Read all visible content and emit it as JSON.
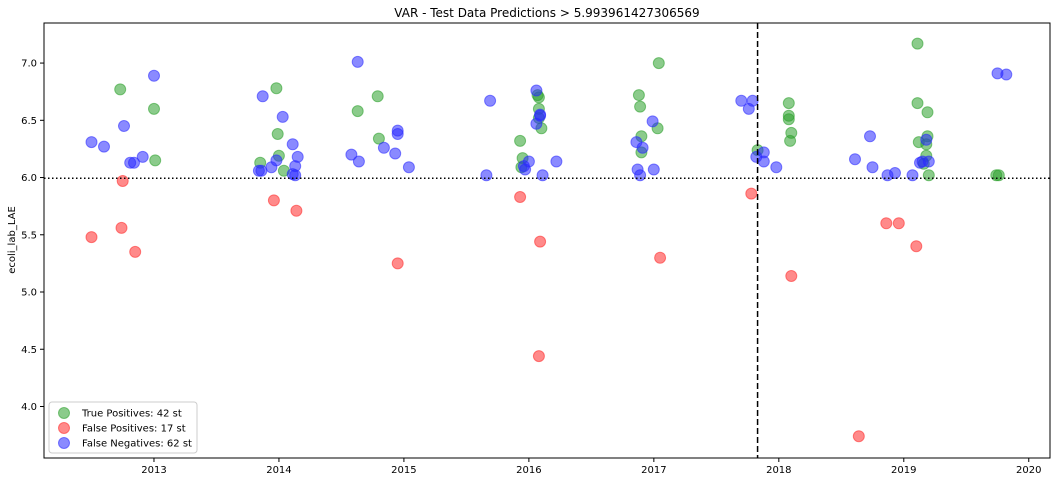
{
  "chart_data": {
    "type": "scatter",
    "title": "VAR - Test Data Predictions > 5.993961427306569",
    "xlabel": "",
    "ylabel": "ecoli_lab_LAE",
    "xlim": [
      2012.12,
      2020.17
    ],
    "ylim": [
      3.55,
      7.35
    ],
    "x_tick_labels": [
      "2013",
      "2014",
      "2015",
      "2016",
      "2017",
      "2018",
      "2019",
      "2020"
    ],
    "y_tick_labels": [
      "4.0",
      "4.5",
      "5.0",
      "5.5",
      "6.0",
      "6.5",
      "7.0"
    ],
    "threshold": 5.993961427306569,
    "vertical_line_x": 2017.83,
    "grid": false,
    "legend_position": "lower-left",
    "series": [
      {
        "name": "True Positives: 42 st",
        "color": "#2ca02c",
        "points": [
          [
            2012.73,
            6.77
          ],
          [
            2013.0,
            6.6
          ],
          [
            2013.01,
            6.15
          ],
          [
            2013.85,
            6.13
          ],
          [
            2013.98,
            6.78
          ],
          [
            2013.99,
            6.38
          ],
          [
            2014.0,
            6.19
          ],
          [
            2014.04,
            6.06
          ],
          [
            2014.63,
            6.58
          ],
          [
            2014.79,
            6.71
          ],
          [
            2014.8,
            6.34
          ],
          [
            2015.93,
            6.32
          ],
          [
            2015.95,
            6.17
          ],
          [
            2015.94,
            6.09
          ],
          [
            2016.07,
            6.72
          ],
          [
            2016.08,
            6.7
          ],
          [
            2016.08,
            6.6
          ],
          [
            2016.1,
            6.43
          ],
          [
            2016.08,
            6.52
          ],
          [
            2016.88,
            6.72
          ],
          [
            2016.89,
            6.62
          ],
          [
            2016.9,
            6.36
          ],
          [
            2016.9,
            6.22
          ],
          [
            2017.04,
            7.0
          ],
          [
            2017.03,
            6.43
          ],
          [
            2017.83,
            6.24
          ],
          [
            2018.08,
            6.65
          ],
          [
            2018.08,
            6.54
          ],
          [
            2018.08,
            6.51
          ],
          [
            2018.1,
            6.39
          ],
          [
            2018.09,
            6.32
          ],
          [
            2019.11,
            7.17
          ],
          [
            2019.11,
            6.65
          ],
          [
            2019.12,
            6.31
          ],
          [
            2019.19,
            6.57
          ],
          [
            2019.19,
            6.36
          ],
          [
            2019.18,
            6.29
          ],
          [
            2019.18,
            6.19
          ],
          [
            2019.16,
            6.12
          ],
          [
            2019.2,
            6.02
          ],
          [
            2019.74,
            6.02
          ],
          [
            2019.76,
            6.02
          ]
        ]
      },
      {
        "name": "False Positives: 17 st",
        "color": "#ff2a2a",
        "points": [
          [
            2012.5,
            5.48
          ],
          [
            2012.75,
            5.97
          ],
          [
            2012.74,
            5.56
          ],
          [
            2012.85,
            5.35
          ],
          [
            2013.96,
            5.8
          ],
          [
            2014.14,
            5.71
          ],
          [
            2014.95,
            5.25
          ],
          [
            2015.93,
            5.83
          ],
          [
            2016.09,
            5.44
          ],
          [
            2016.08,
            4.44
          ],
          [
            2017.05,
            5.3
          ],
          [
            2017.78,
            5.86
          ],
          [
            2018.1,
            5.14
          ],
          [
            2018.64,
            3.74
          ],
          [
            2018.86,
            5.6
          ],
          [
            2018.96,
            5.6
          ],
          [
            2019.1,
            5.4
          ]
        ]
      },
      {
        "name": "False Negatives: 62 st",
        "color": "#2a2aff",
        "points": [
          [
            2012.5,
            6.31
          ],
          [
            2012.6,
            6.27
          ],
          [
            2012.76,
            6.45
          ],
          [
            2012.81,
            6.13
          ],
          [
            2012.84,
            6.13
          ],
          [
            2012.91,
            6.18
          ],
          [
            2013.0,
            6.89
          ],
          [
            2013.84,
            6.06
          ],
          [
            2013.86,
            6.06
          ],
          [
            2013.87,
            6.71
          ],
          [
            2013.94,
            6.09
          ],
          [
            2013.98,
            6.15
          ],
          [
            2014.03,
            6.53
          ],
          [
            2014.11,
            6.29
          ],
          [
            2014.13,
            6.1
          ],
          [
            2014.11,
            6.03
          ],
          [
            2014.13,
            6.02
          ],
          [
            2014.15,
            6.18
          ],
          [
            2014.58,
            6.2
          ],
          [
            2014.63,
            7.01
          ],
          [
            2014.64,
            6.14
          ],
          [
            2014.84,
            6.26
          ],
          [
            2014.93,
            6.21
          ],
          [
            2014.95,
            6.38
          ],
          [
            2014.95,
            6.41
          ],
          [
            2015.04,
            6.09
          ],
          [
            2015.66,
            6.02
          ],
          [
            2015.69,
            6.67
          ],
          [
            2015.96,
            6.1
          ],
          [
            2015.97,
            6.07
          ],
          [
            2016.0,
            6.14
          ],
          [
            2016.06,
            6.76
          ],
          [
            2016.06,
            6.47
          ],
          [
            2016.09,
            6.54
          ],
          [
            2016.09,
            6.55
          ],
          [
            2016.11,
            6.02
          ],
          [
            2016.22,
            6.14
          ],
          [
            2016.86,
            6.31
          ],
          [
            2016.87,
            6.07
          ],
          [
            2016.89,
            6.02
          ],
          [
            2016.91,
            6.26
          ],
          [
            2016.99,
            6.49
          ],
          [
            2017.0,
            6.07
          ],
          [
            2017.7,
            6.67
          ],
          [
            2017.76,
            6.6
          ],
          [
            2017.79,
            6.67
          ],
          [
            2017.82,
            6.18
          ],
          [
            2017.88,
            6.22
          ],
          [
            2017.88,
            6.14
          ],
          [
            2017.98,
            6.09
          ],
          [
            2018.61,
            6.16
          ],
          [
            2018.73,
            6.36
          ],
          [
            2018.75,
            6.09
          ],
          [
            2018.87,
            6.02
          ],
          [
            2018.93,
            6.04
          ],
          [
            2019.07,
            6.02
          ],
          [
            2019.13,
            6.13
          ],
          [
            2019.15,
            6.14
          ],
          [
            2019.18,
            6.33
          ],
          [
            2019.2,
            6.14
          ],
          [
            2019.75,
            6.91
          ],
          [
            2019.82,
            6.9
          ]
        ]
      }
    ]
  }
}
